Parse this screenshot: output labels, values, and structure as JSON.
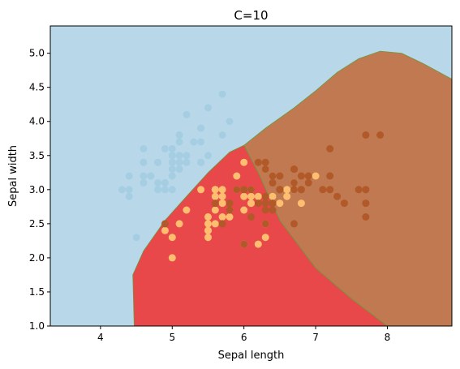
{
  "chart_data": {
    "type": "scatter",
    "title": "C=10",
    "xlabel": "Sepal length",
    "ylabel": "Sepal width",
    "xlim": [
      3.3,
      8.9
    ],
    "ylim": [
      1.0,
      5.4
    ],
    "xticks": [
      4,
      5,
      6,
      7,
      8
    ],
    "yticks": [
      1.0,
      1.5,
      2.0,
      2.5,
      3.0,
      3.5,
      4.0,
      4.5,
      5.0
    ],
    "grid": false,
    "legend": "none",
    "colors": {
      "background_region": "#b8d8ea",
      "region_class1": "#e8484a",
      "region_class2": "#c07950",
      "boundary_line": "#6a9a3a",
      "class0_points": "#a6cee3",
      "class1_points": "#fdbf6f",
      "class2_points": "#b15928"
    },
    "regions": [
      {
        "class": 1,
        "polygon": [
          [
            4.47,
            1.0
          ],
          [
            4.45,
            1.75
          ],
          [
            4.6,
            2.1
          ],
          [
            4.9,
            2.55
          ],
          [
            5.2,
            2.9
          ],
          [
            5.5,
            3.25
          ],
          [
            5.8,
            3.55
          ],
          [
            6.0,
            3.65
          ],
          [
            6.2,
            3.25
          ],
          [
            6.5,
            2.55
          ],
          [
            7.0,
            1.85
          ],
          [
            7.5,
            1.4
          ],
          [
            8.0,
            1.0
          ]
        ]
      },
      {
        "class": 2,
        "polygon": [
          [
            6.0,
            3.65
          ],
          [
            6.3,
            3.9
          ],
          [
            6.7,
            4.2
          ],
          [
            7.0,
            4.45
          ],
          [
            7.3,
            4.72
          ],
          [
            7.6,
            4.92
          ],
          [
            7.9,
            5.03
          ],
          [
            8.2,
            5.0
          ],
          [
            8.5,
            4.85
          ],
          [
            8.9,
            4.62
          ],
          [
            8.9,
            1.0
          ],
          [
            8.0,
            1.0
          ],
          [
            7.5,
            1.4
          ],
          [
            7.0,
            1.85
          ],
          [
            6.5,
            2.55
          ],
          [
            6.2,
            3.25
          ]
        ]
      }
    ],
    "series": [
      {
        "class": 0,
        "points": [
          [
            5.1,
            3.5
          ],
          [
            4.9,
            3.0
          ],
          [
            4.7,
            3.2
          ],
          [
            4.6,
            3.1
          ],
          [
            5.0,
            3.6
          ],
          [
            5.4,
            3.9
          ],
          [
            4.6,
            3.4
          ],
          [
            5.0,
            3.4
          ],
          [
            4.4,
            2.9
          ],
          [
            4.9,
            3.1
          ],
          [
            5.4,
            3.7
          ],
          [
            4.8,
            3.4
          ],
          [
            4.8,
            3.0
          ],
          [
            4.3,
            3.0
          ],
          [
            5.8,
            4.0
          ],
          [
            5.7,
            4.4
          ],
          [
            5.4,
            3.9
          ],
          [
            5.1,
            3.5
          ],
          [
            5.7,
            3.8
          ],
          [
            5.1,
            3.8
          ],
          [
            5.4,
            3.4
          ],
          [
            5.1,
            3.7
          ],
          [
            4.6,
            3.6
          ],
          [
            5.1,
            3.3
          ],
          [
            4.8,
            3.4
          ],
          [
            5.0,
            3.0
          ],
          [
            5.0,
            3.4
          ],
          [
            5.2,
            3.5
          ],
          [
            5.2,
            3.4
          ],
          [
            4.7,
            3.2
          ],
          [
            4.8,
            3.1
          ],
          [
            5.4,
            3.4
          ],
          [
            5.2,
            4.1
          ],
          [
            5.5,
            4.2
          ],
          [
            4.9,
            3.1
          ],
          [
            5.0,
            3.2
          ],
          [
            5.5,
            3.5
          ],
          [
            4.9,
            3.6
          ],
          [
            4.4,
            3.0
          ],
          [
            5.1,
            3.4
          ],
          [
            5.0,
            3.5
          ],
          [
            4.5,
            2.3
          ],
          [
            4.4,
            3.2
          ],
          [
            5.0,
            3.5
          ],
          [
            5.1,
            3.8
          ],
          [
            4.8,
            3.0
          ],
          [
            5.1,
            3.8
          ],
          [
            4.6,
            3.2
          ],
          [
            5.3,
            3.7
          ],
          [
            5.0,
            3.3
          ]
        ]
      },
      {
        "class": 1,
        "points": [
          [
            7.0,
            3.2
          ],
          [
            6.4,
            3.2
          ],
          [
            6.9,
            3.1
          ],
          [
            5.5,
            2.3
          ],
          [
            6.5,
            2.8
          ],
          [
            5.7,
            2.8
          ],
          [
            6.3,
            3.3
          ],
          [
            4.9,
            2.4
          ],
          [
            6.6,
            2.9
          ],
          [
            5.2,
            2.7
          ],
          [
            5.0,
            2.0
          ],
          [
            5.9,
            3.0
          ],
          [
            6.0,
            2.2
          ],
          [
            6.1,
            2.9
          ],
          [
            5.6,
            2.9
          ],
          [
            6.7,
            3.1
          ],
          [
            5.6,
            3.0
          ],
          [
            5.8,
            2.7
          ],
          [
            6.2,
            2.2
          ],
          [
            5.6,
            2.5
          ],
          [
            5.9,
            3.2
          ],
          [
            6.1,
            2.8
          ],
          [
            6.3,
            2.5
          ],
          [
            6.1,
            2.8
          ],
          [
            6.4,
            2.9
          ],
          [
            6.6,
            3.0
          ],
          [
            6.8,
            2.8
          ],
          [
            6.7,
            3.0
          ],
          [
            6.0,
            2.9
          ],
          [
            5.7,
            2.6
          ],
          [
            5.5,
            2.4
          ],
          [
            5.5,
            2.4
          ],
          [
            5.8,
            2.7
          ],
          [
            6.0,
            2.7
          ],
          [
            5.4,
            3.0
          ],
          [
            6.0,
            3.4
          ],
          [
            6.7,
            3.1
          ],
          [
            6.3,
            2.3
          ],
          [
            5.6,
            3.0
          ],
          [
            5.5,
            2.5
          ],
          [
            5.5,
            2.6
          ],
          [
            6.1,
            3.0
          ],
          [
            5.8,
            2.6
          ],
          [
            5.0,
            2.3
          ],
          [
            5.6,
            2.7
          ],
          [
            5.7,
            3.0
          ],
          [
            5.7,
            2.9
          ],
          [
            6.2,
            2.9
          ],
          [
            5.1,
            2.5
          ],
          [
            5.7,
            2.8
          ]
        ]
      },
      {
        "class": 2,
        "points": [
          [
            6.3,
            3.3
          ],
          [
            5.8,
            2.7
          ],
          [
            7.1,
            3.0
          ],
          [
            6.3,
            2.9
          ],
          [
            6.5,
            3.0
          ],
          [
            7.6,
            3.0
          ],
          [
            4.9,
            2.5
          ],
          [
            7.3,
            2.9
          ],
          [
            6.7,
            2.5
          ],
          [
            7.2,
            3.6
          ],
          [
            6.5,
            3.2
          ],
          [
            6.4,
            2.7
          ],
          [
            6.8,
            3.0
          ],
          [
            5.7,
            2.5
          ],
          [
            5.8,
            2.8
          ],
          [
            6.4,
            3.2
          ],
          [
            6.5,
            3.0
          ],
          [
            7.7,
            3.8
          ],
          [
            7.7,
            2.6
          ],
          [
            6.0,
            2.2
          ],
          [
            6.9,
            3.2
          ],
          [
            5.6,
            2.8
          ],
          [
            7.7,
            2.8
          ],
          [
            6.3,
            2.7
          ],
          [
            6.7,
            3.3
          ],
          [
            7.2,
            3.2
          ],
          [
            6.2,
            2.8
          ],
          [
            6.1,
            3.0
          ],
          [
            6.4,
            2.8
          ],
          [
            7.2,
            3.0
          ],
          [
            7.4,
            2.8
          ],
          [
            7.9,
            3.8
          ],
          [
            6.4,
            2.8
          ],
          [
            6.3,
            2.8
          ],
          [
            6.1,
            2.6
          ],
          [
            7.7,
            3.0
          ],
          [
            6.3,
            3.4
          ],
          [
            6.4,
            3.1
          ],
          [
            6.0,
            3.0
          ],
          [
            6.9,
            3.1
          ],
          [
            6.7,
            3.1
          ],
          [
            6.9,
            3.1
          ],
          [
            5.8,
            2.7
          ],
          [
            6.8,
            3.2
          ],
          [
            6.7,
            3.3
          ],
          [
            6.7,
            3.0
          ],
          [
            6.3,
            2.5
          ],
          [
            6.5,
            3.0
          ],
          [
            6.2,
            3.4
          ],
          [
            5.9,
            3.0
          ]
        ]
      }
    ]
  }
}
